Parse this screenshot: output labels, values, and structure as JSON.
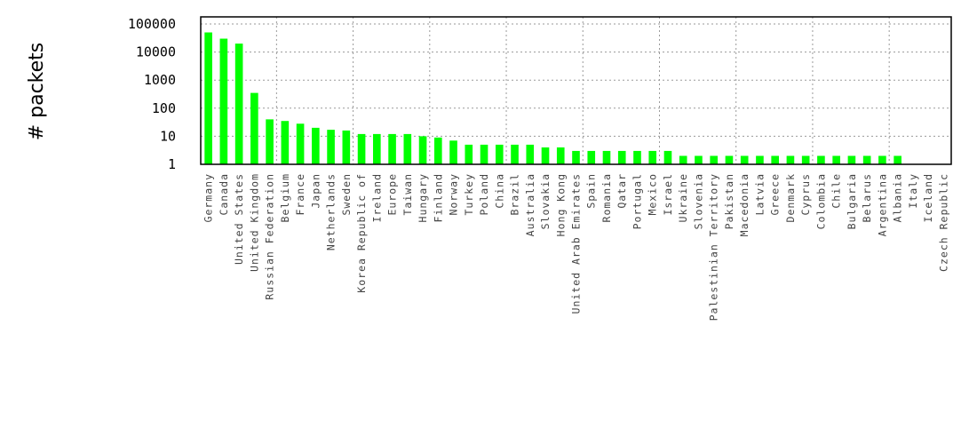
{
  "chart_data": {
    "type": "bar",
    "ylabel": "# packets",
    "yscale": "log",
    "ylim": [
      1,
      100000
    ],
    "yticks": [
      "1",
      "10",
      "100",
      "1000",
      "10000",
      "100000"
    ],
    "grid": true,
    "colors": {
      "bar": "#00ff00",
      "grid": "#9a9a9a",
      "axis": "#000000"
    },
    "categories": [
      "Germany",
      "Canada",
      "United States",
      "United Kingdom",
      "Russian Federation",
      "Belgium",
      "France",
      "Japan",
      "Netherlands",
      "Sweden",
      "Korea Republic of",
      "Ireland",
      "Europe",
      "Taiwan",
      "Hungary",
      "Finland",
      "Norway",
      "Turkey",
      "Poland",
      "China",
      "Brazil",
      "Australia",
      "Slovakia",
      "Hong Kong",
      "United Arab Emirates",
      "Spain",
      "Romania",
      "Qatar",
      "Portugal",
      "Mexico",
      "Israel",
      "Ukraine",
      "Slovenia",
      "Palestinian Territory",
      "Pakistan",
      "Macedonia",
      "Latvia",
      "Greece",
      "Denmark",
      "Cyprus",
      "Colombia",
      "Chile",
      "Bulgaria",
      "Belarus",
      "Argentina",
      "Albania",
      "Italy",
      "Iceland",
      "Czech Republic"
    ],
    "values": [
      50000,
      30000,
      20000,
      350,
      40,
      35,
      28,
      20,
      17,
      16,
      12,
      12,
      12,
      12,
      10,
      9,
      7,
      5,
      5,
      5,
      5,
      5,
      4,
      4,
      3,
      3,
      3,
      3,
      3,
      3,
      3,
      2,
      2,
      2,
      2,
      2,
      2,
      2,
      2,
      2,
      2,
      2,
      2,
      2,
      2,
      2,
      1,
      1,
      1
    ]
  }
}
